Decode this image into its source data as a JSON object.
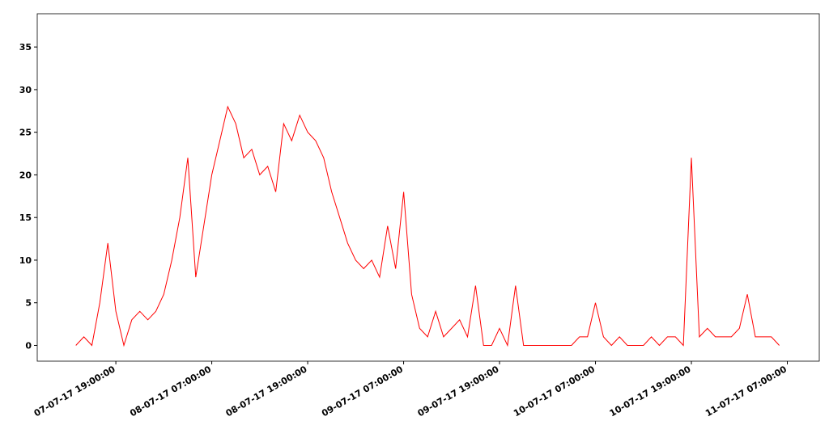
{
  "chart_data": {
    "type": "line",
    "color": "#ff0000",
    "x": [
      "07-07-17 14:00:00",
      "07-07-17 15:00:00",
      "07-07-17 16:00:00",
      "07-07-17 17:00:00",
      "07-07-17 18:00:00",
      "07-07-17 19:00:00",
      "07-07-17 20:00:00",
      "07-07-17 21:00:00",
      "07-07-17 22:00:00",
      "07-07-17 23:00:00",
      "08-07-17 00:00:00",
      "08-07-17 01:00:00",
      "08-07-17 02:00:00",
      "08-07-17 03:00:00",
      "08-07-17 04:00:00",
      "08-07-17 05:00:00",
      "08-07-17 06:00:00",
      "08-07-17 07:00:00",
      "08-07-17 08:00:00",
      "08-07-17 09:00:00",
      "08-07-17 10:00:00",
      "08-07-17 11:00:00",
      "08-07-17 12:00:00",
      "08-07-17 13:00:00",
      "08-07-17 14:00:00",
      "08-07-17 15:00:00",
      "08-07-17 16:00:00",
      "08-07-17 17:00:00",
      "08-07-17 18:00:00",
      "08-07-17 19:00:00",
      "08-07-17 20:00:00",
      "08-07-17 21:00:00",
      "08-07-17 22:00:00",
      "08-07-17 23:00:00",
      "09-07-17 00:00:00",
      "09-07-17 01:00:00",
      "09-07-17 02:00:00",
      "09-07-17 03:00:00",
      "09-07-17 04:00:00",
      "09-07-17 05:00:00",
      "09-07-17 06:00:00",
      "09-07-17 07:00:00",
      "09-07-17 08:00:00",
      "09-07-17 09:00:00",
      "09-07-17 10:00:00",
      "09-07-17 11:00:00",
      "09-07-17 12:00:00",
      "09-07-17 13:00:00",
      "09-07-17 14:00:00",
      "09-07-17 15:00:00",
      "09-07-17 16:00:00",
      "09-07-17 17:00:00",
      "09-07-17 18:00:00",
      "09-07-17 19:00:00",
      "09-07-17 20:00:00",
      "09-07-17 21:00:00",
      "09-07-17 22:00:00",
      "09-07-17 23:00:00",
      "10-07-17 00:00:00",
      "10-07-17 01:00:00",
      "10-07-17 02:00:00",
      "10-07-17 03:00:00",
      "10-07-17 04:00:00",
      "10-07-17 05:00:00",
      "10-07-17 06:00:00",
      "10-07-17 07:00:00",
      "10-07-17 08:00:00",
      "10-07-17 09:00:00",
      "10-07-17 10:00:00",
      "10-07-17 11:00:00",
      "10-07-17 12:00:00",
      "10-07-17 13:00:00",
      "10-07-17 14:00:00",
      "10-07-17 15:00:00",
      "10-07-17 16:00:00",
      "10-07-17 17:00:00",
      "10-07-17 18:00:00",
      "10-07-17 19:00:00",
      "10-07-17 20:00:00",
      "10-07-17 21:00:00",
      "10-07-17 22:00:00",
      "10-07-17 23:00:00",
      "11-07-17 00:00:00",
      "11-07-17 01:00:00",
      "11-07-17 02:00:00",
      "11-07-17 03:00:00",
      "11-07-17 04:00:00",
      "11-07-17 05:00:00",
      "11-07-17 06:00:00"
    ],
    "values": [
      0,
      1,
      0,
      5,
      12,
      4,
      0,
      3,
      4,
      3,
      4,
      6,
      10,
      15,
      22,
      8,
      14,
      20,
      24,
      28,
      26,
      22,
      23,
      20,
      21,
      18,
      26,
      24,
      27,
      25,
      24,
      22,
      18,
      15,
      12,
      10,
      9,
      10,
      8,
      14,
      9,
      18,
      6,
      2,
      1,
      4,
      1,
      2,
      3,
      1,
      7,
      0,
      0,
      2,
      0,
      7,
      0,
      0,
      0,
      0,
      0,
      0,
      0,
      1,
      1,
      5,
      1,
      0,
      1,
      0,
      0,
      0,
      1,
      0,
      1,
      1,
      0,
      22,
      1,
      2,
      1,
      1,
      1,
      2,
      6,
      1,
      1,
      1,
      0
    ],
    "xlim": [
      "07-07-17 09:10:00",
      "11-07-17 11:00:00"
    ],
    "xticks": [
      "07-07-17 19:00:00",
      "08-07-17 07:00:00",
      "08-07-17 19:00:00",
      "09-07-17 07:00:00",
      "09-07-17 19:00:00",
      "10-07-17 07:00:00",
      "10-07-17 19:00:00",
      "11-07-17 07:00:00"
    ],
    "ylim": [
      -1.85,
      38.9
    ],
    "yticks": [
      0,
      5,
      10,
      15,
      20,
      25,
      30,
      35
    ]
  }
}
